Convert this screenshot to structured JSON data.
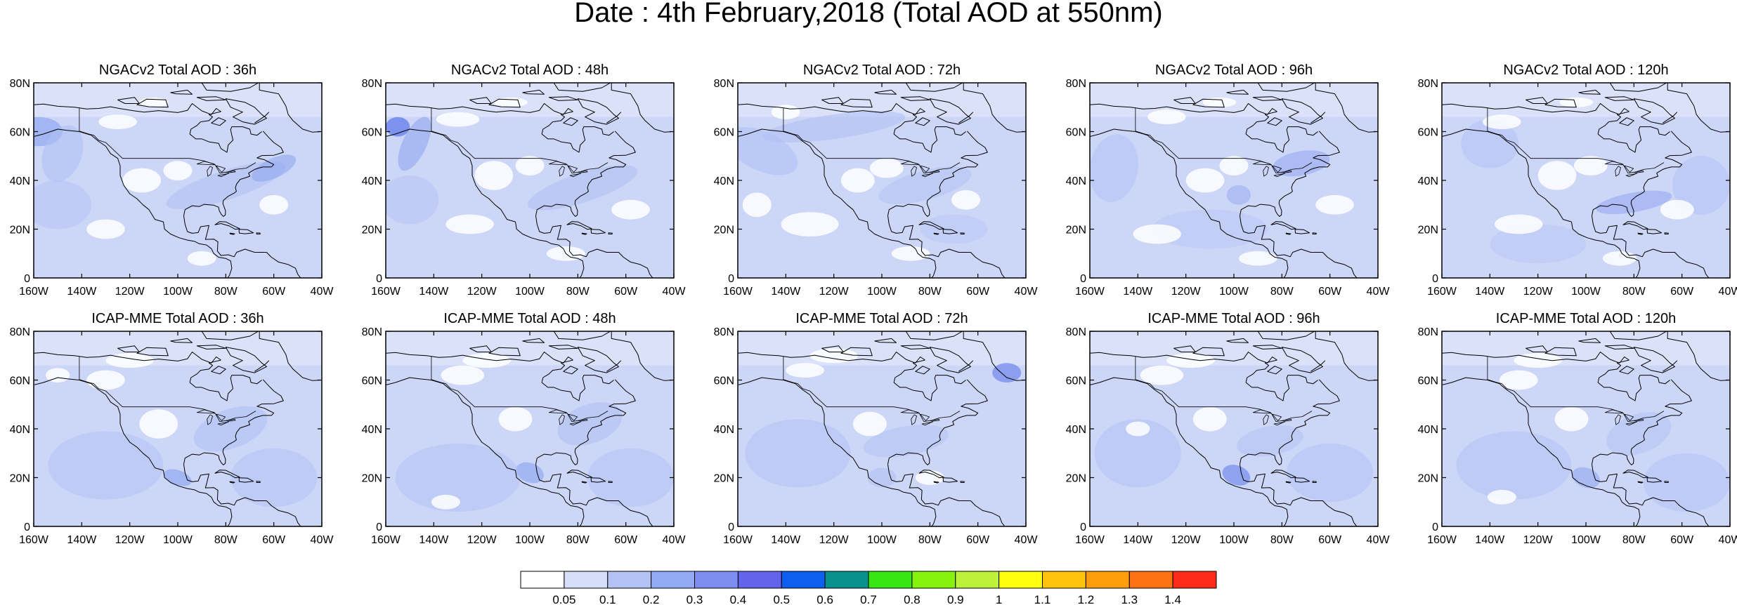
{
  "figure": {
    "title": "Date : 4th February,2018 (Total AOD at 550nm)"
  },
  "axes": {
    "y_ticks": [
      "80N",
      "60N",
      "40N",
      "20N",
      "0"
    ],
    "x_ticks": [
      "160W",
      "140W",
      "120W",
      "100W",
      "80W",
      "60W",
      "40W"
    ],
    "lon_range_deg": [
      -160,
      -40
    ],
    "lat_range_deg": [
      0,
      80
    ]
  },
  "panels": [
    {
      "title": "NGACv2 Total AOD : 36h",
      "model": "NGACv2",
      "lead": "36h"
    },
    {
      "title": "NGACv2 Total AOD : 48h",
      "model": "NGACv2",
      "lead": "48h"
    },
    {
      "title": "NGACv2 Total AOD : 72h",
      "model": "NGACv2",
      "lead": "72h"
    },
    {
      "title": "NGACv2 Total AOD : 96h",
      "model": "NGACv2",
      "lead": "96h"
    },
    {
      "title": "NGACv2 Total AOD : 120h",
      "model": "NGACv2",
      "lead": "120h"
    },
    {
      "title": "ICAP-MME Total AOD : 36h",
      "model": "ICAP-MME",
      "lead": "36h"
    },
    {
      "title": "ICAP-MME Total AOD : 48h",
      "model": "ICAP-MME",
      "lead": "48h"
    },
    {
      "title": "ICAP-MME Total AOD : 72h",
      "model": "ICAP-MME",
      "lead": "72h"
    },
    {
      "title": "ICAP-MME Total AOD : 96h",
      "model": "ICAP-MME",
      "lead": "96h"
    },
    {
      "title": "ICAP-MME Total AOD : 120h",
      "model": "ICAP-MME",
      "lead": "120h"
    }
  ],
  "colorbar": {
    "labels": [
      "0.05",
      "0.1",
      "0.2",
      "0.3",
      "0.4",
      "0.5",
      "0.6",
      "0.7",
      "0.8",
      "0.9",
      "1",
      "1.1",
      "1.2",
      "1.3",
      "1.4"
    ],
    "colors": [
      "#ffffff",
      "#d7defa",
      "#b3c2f5",
      "#93abf2",
      "#7d8ef0",
      "#6363ec",
      "#0e5eef",
      "#07928d",
      "#37e612",
      "#86f20d",
      "#bdf23a",
      "#ffff0d",
      "#ffc20d",
      "#ff9e0d",
      "#ff7212",
      "#ff2b1a"
    ]
  },
  "map_colors": {
    "base": "#ccd6f7",
    "light": "#dfe5fa",
    "mid": "#aebff4",
    "high": "#91a6f0",
    "peak": "#6f86ec",
    "coast": "#000000"
  }
}
